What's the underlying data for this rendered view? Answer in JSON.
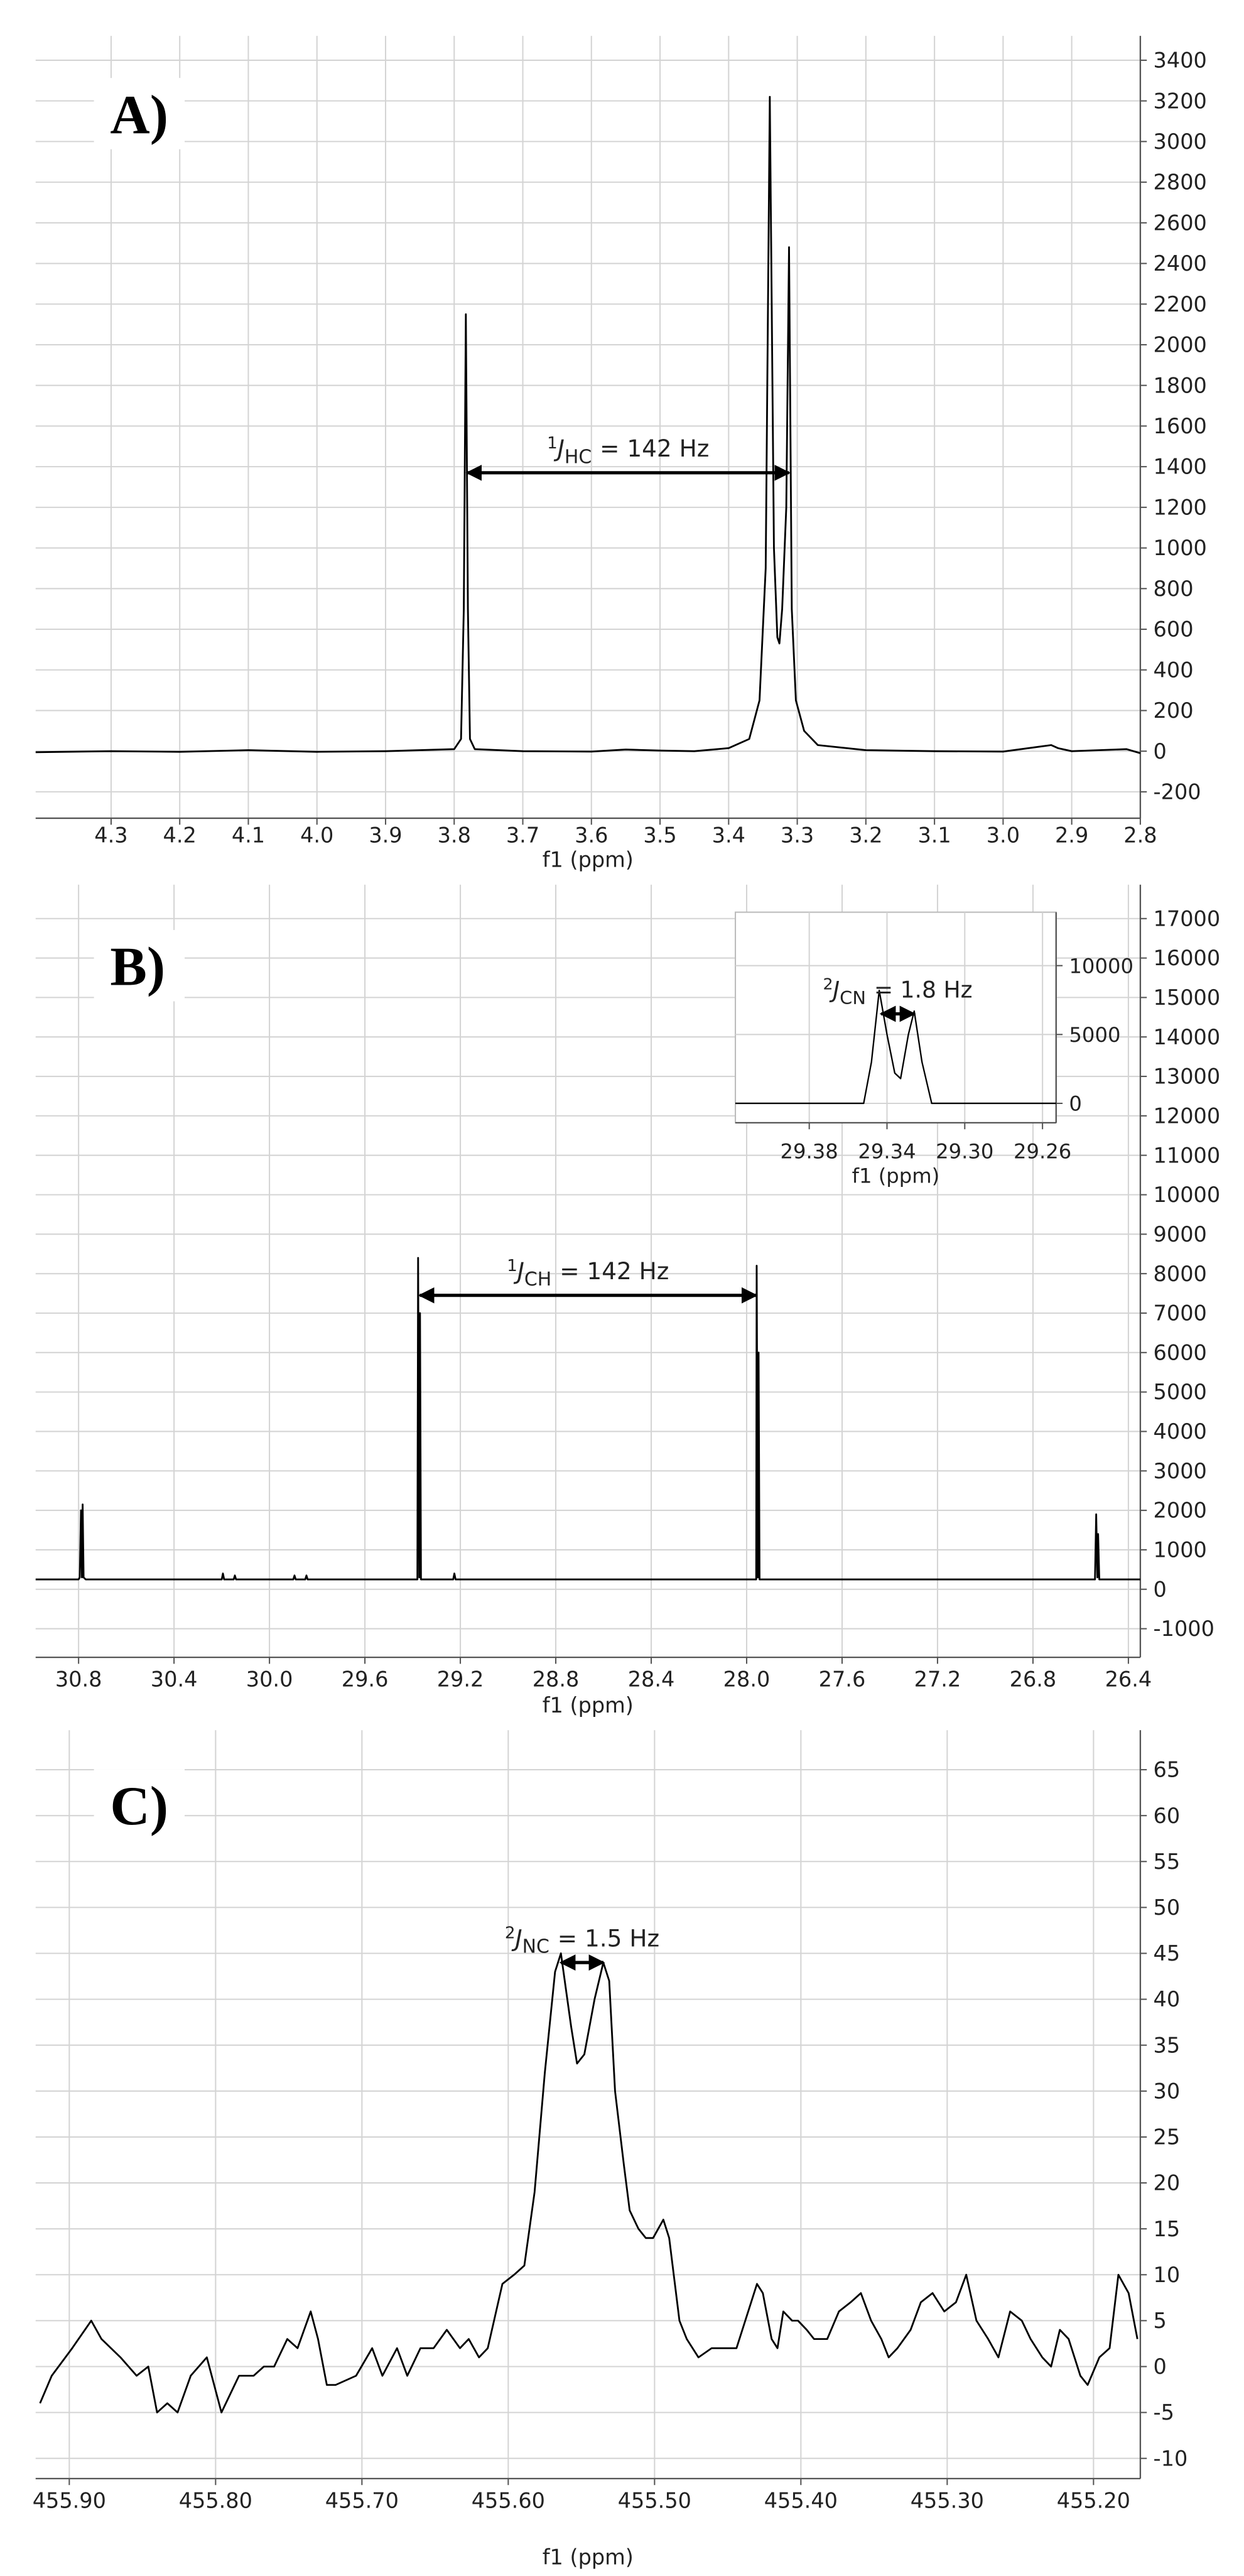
{
  "chart_data": [
    {
      "type": "line",
      "label": "A)",
      "xlabel": "f1 (ppm)",
      "color": "#000000",
      "grid": true,
      "xlim": [
        4.41,
        2.8
      ],
      "ylim": [
        -330,
        3520
      ],
      "xticks": [
        4.3,
        4.2,
        4.1,
        {
          "value": 4.0,
          "label": "4.0"
        },
        3.9,
        3.8,
        3.7,
        3.6,
        3.5,
        3.4,
        3.3,
        3.2,
        3.1,
        {
          "value": 3.0,
          "label": "3.0"
        },
        2.9,
        2.8
      ],
      "yticks": [
        -200,
        0,
        200,
        400,
        600,
        800,
        1000,
        1200,
        1400,
        1600,
        1800,
        2000,
        2200,
        2400,
        2600,
        2800,
        3000,
        3200,
        3400
      ],
      "x": [
        4.41,
        4.3,
        4.2,
        4.1,
        4.0,
        3.9,
        3.8,
        3.79,
        3.786,
        3.783,
        3.78,
        3.777,
        3.77,
        3.7,
        3.6,
        3.55,
        3.5,
        3.45,
        3.4,
        3.37,
        3.355,
        3.346,
        3.34,
        3.334,
        3.329,
        3.326,
        3.322,
        3.316,
        3.312,
        3.308,
        3.302,
        3.29,
        3.27,
        3.2,
        3.1,
        3.0,
        2.93,
        2.92,
        2.9,
        2.82,
        2.8
      ],
      "values": [
        -5,
        0,
        -3,
        5,
        -3,
        0,
        10,
        60,
        700,
        2150,
        700,
        60,
        10,
        0,
        -2,
        8,
        3,
        0,
        15,
        60,
        250,
        900,
        3220,
        1000,
        560,
        530,
        700,
        1200,
        2480,
        700,
        250,
        100,
        30,
        5,
        0,
        -2,
        30,
        15,
        0,
        10,
        -10
      ],
      "annotation": {
        "sup": "1",
        "symbol": "J",
        "sub": "HC",
        "text": "= 142 Hz",
        "x": [
          3.781,
          3.312
        ],
        "y": 1370
      }
    },
    {
      "type": "line",
      "label": "B)",
      "xlabel": "f1 (ppm)",
      "color": "#000000",
      "grid": true,
      "xlim": [
        30.98,
        26.35
      ],
      "ylim": [
        -1725,
        17860
      ],
      "xticks": [
        30.8,
        30.4,
        {
          "value": 30.0,
          "label": "30.0"
        },
        29.6,
        29.2,
        28.8,
        28.4,
        {
          "value": 28.0,
          "label": "28.0"
        },
        27.6,
        27.2,
        26.8,
        26.4
      ],
      "yticks": [
        -1000,
        0,
        1000,
        2000,
        3000,
        4000,
        5000,
        6000,
        7000,
        8000,
        9000,
        10000,
        11000,
        12000,
        13000,
        14000,
        15000,
        16000,
        17000
      ],
      "x": [
        30.98,
        30.8,
        30.795,
        30.79,
        30.786,
        30.783,
        30.779,
        30.77,
        30.2,
        30.195,
        30.19,
        30.15,
        30.145,
        30.14,
        29.9,
        29.895,
        29.89,
        29.85,
        29.845,
        29.84,
        29.38,
        29.377,
        29.372,
        29.369,
        29.365,
        29.23,
        29.225,
        29.22,
        27.96,
        27.958,
        27.953,
        27.95,
        27.946,
        26.54,
        26.535,
        26.53,
        26.527,
        26.522,
        26.35
      ],
      "values": [
        250,
        250,
        300,
        2000,
        300,
        2150,
        300,
        250,
        250,
        400,
        250,
        250,
        350,
        250,
        250,
        350,
        250,
        250,
        350,
        250,
        250,
        8400,
        300,
        7000,
        250,
        250,
        400,
        250,
        250,
        8200,
        300,
        6000,
        250,
        250,
        1900,
        300,
        1400,
        250,
        250
      ],
      "annotation": {
        "sup": "1",
        "symbol": "J",
        "sub": "CH",
        "text": "= 142 Hz",
        "x": [
          29.37,
          27.96
        ],
        "y": 7450
      }
    },
    {
      "type": "line",
      "xlabel": "f1 (ppm)",
      "color": "#000000",
      "grid": true,
      "xlim": [
        29.418,
        29.253
      ],
      "ylim": [
        -1410,
        13880
      ],
      "xticks": [
        29.38,
        29.34,
        {
          "value": 29.3,
          "label": "29.30"
        },
        29.26
      ],
      "yticks": [
        0,
        5000,
        10000
      ],
      "x": [
        29.418,
        29.352,
        29.348,
        29.344,
        29.34,
        29.336,
        29.333,
        29.329,
        29.326,
        29.322,
        29.317,
        29.253
      ],
      "values": [
        0,
        0,
        3000,
        8200,
        5000,
        2200,
        1800,
        5000,
        6700,
        3000,
        0,
        0
      ],
      "annotation": {
        "sup": "2",
        "symbol": "J",
        "sub": "CN",
        "text": "= 1.8 Hz",
        "x": [
          29.343,
          29.326
        ],
        "y": 6500
      }
    },
    {
      "type": "line",
      "label": "C)",
      "xlabel": "f1 (ppm)",
      "color": "#000000",
      "grid": true,
      "xlim": [
        455.923,
        455.168
      ],
      "ylim": [
        -12.2,
        69.3
      ],
      "xticks": [
        {
          "value": 455.9,
          "label": "455.90"
        },
        {
          "value": 455.8,
          "label": "455.80"
        },
        {
          "value": 455.7,
          "label": "455.70"
        },
        {
          "value": 455.6,
          "label": "455.60"
        },
        {
          "value": 455.5,
          "label": "455.50"
        },
        {
          "value": 455.4,
          "label": "455.40"
        },
        {
          "value": 455.3,
          "label": "455.30"
        },
        {
          "value": 455.2,
          "label": "455.20"
        }
      ],
      "yticks": [
        -10,
        -5,
        0,
        5,
        10,
        15,
        20,
        25,
        30,
        35,
        40,
        45,
        50,
        55,
        60,
        65
      ],
      "x": [
        455.92,
        455.912,
        455.898,
        455.885,
        455.878,
        455.865,
        455.854,
        455.846,
        455.84,
        455.833,
        455.826,
        455.817,
        455.806,
        455.796,
        455.784,
        455.774,
        455.767,
        455.76,
        455.751,
        455.744,
        455.735,
        455.73,
        455.724,
        455.718,
        455.704,
        455.693,
        455.686,
        455.676,
        455.669,
        455.66,
        455.651,
        455.642,
        455.633,
        455.627,
        455.62,
        455.614,
        455.604,
        455.596,
        455.589,
        455.582,
        455.575,
        455.568,
        455.564,
        455.557,
        455.553,
        455.548,
        455.541,
        455.535,
        455.531,
        455.527,
        455.521,
        455.517,
        455.511,
        455.506,
        455.501,
        455.494,
        455.49,
        455.483,
        455.478,
        455.47,
        455.461,
        455.451,
        455.444,
        455.436,
        455.43,
        455.426,
        455.42,
        455.416,
        455.412,
        455.406,
        455.402,
        455.396,
        455.391,
        455.382,
        455.374,
        455.366,
        455.359,
        455.352,
        455.345,
        455.34,
        455.334,
        455.325,
        455.318,
        455.31,
        455.302,
        455.294,
        455.287,
        455.28,
        455.272,
        455.265,
        455.257,
        455.249,
        455.243,
        455.235,
        455.229,
        455.223,
        455.217,
        455.209,
        455.204,
        455.196,
        455.189,
        455.183,
        455.176,
        455.17
      ],
      "values": [
        -4,
        -1,
        2,
        5,
        3,
        1,
        -1,
        0,
        -5,
        -4,
        -5,
        -1,
        1,
        -5,
        -1,
        -1,
        0,
        0,
        3,
        2,
        6,
        3,
        -2,
        -2,
        -1,
        2,
        -1,
        2,
        -1,
        2,
        2,
        4,
        2,
        3,
        1,
        2,
        9,
        10,
        11,
        19,
        32,
        43,
        45,
        37,
        33,
        34,
        40,
        44,
        42,
        30,
        22,
        17,
        15,
        14,
        14,
        16,
        14,
        5,
        3,
        1,
        2,
        2,
        2,
        6,
        9,
        8,
        3,
        2,
        6,
        5,
        5,
        4,
        3,
        3,
        6,
        7,
        8,
        5,
        3,
        1,
        2,
        4,
        7,
        8,
        6,
        7,
        10,
        5,
        3,
        1,
        6,
        5,
        3,
        1,
        0,
        4,
        3,
        -1,
        -2,
        1,
        2,
        10,
        8,
        3
      ],
      "annotation": {
        "sup": "2",
        "symbol": "J",
        "sub": "NC",
        "text": "= 1.5 Hz",
        "x": [
          455.564,
          455.535
        ],
        "y": 44
      }
    }
  ]
}
